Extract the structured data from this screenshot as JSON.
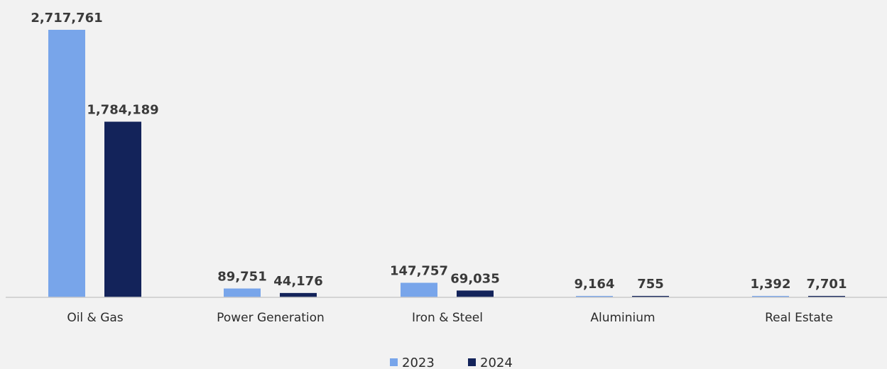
{
  "chart_data": {
    "type": "bar",
    "categories": [
      "Oil & Gas",
      "Power Generation",
      "Iron & Steel",
      "Aluminium",
      "Real Estate"
    ],
    "series": [
      {
        "name": "2023",
        "color": "#78a5ea",
        "values": [
          2717761,
          89751,
          147757,
          9164,
          1392
        ],
        "labels": [
          "2,717,761",
          "89,751",
          "147,757",
          "9,164",
          "1,392"
        ]
      },
      {
        "name": "2024",
        "color": "#13235a",
        "values": [
          1784189,
          44176,
          69035,
          755,
          7701
        ],
        "labels": [
          "1,784,189",
          "44,176",
          "69,035",
          "755",
          "7,701"
        ]
      }
    ],
    "ylim": [
      0,
      2717761
    ],
    "grid": false,
    "legend_position": "bottom",
    "title": "",
    "xlabel": "",
    "ylabel": ""
  }
}
